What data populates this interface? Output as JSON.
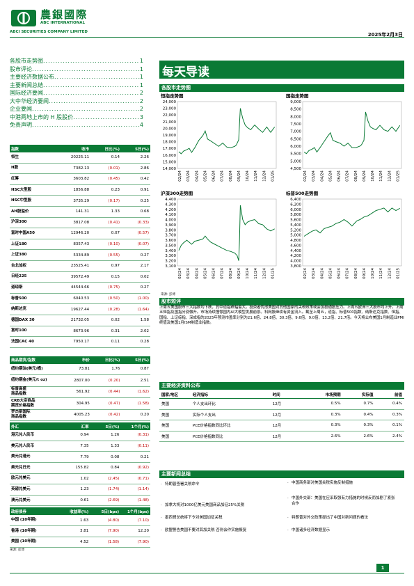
{
  "header": {
    "logo_cn": "農銀國際",
    "logo_en1": "ABC INTERNATIONAL",
    "logo_en2": "ABCI SECURITIES COMPANY LIMITED",
    "date": "2025年2月3日",
    "brand_color": "#0a7a35"
  },
  "toc": [
    {
      "title": "各股市走势图",
      "page": "1"
    },
    {
      "title": "股市评论",
      "page": "1"
    },
    {
      "title": "主要经济数据公布",
      "page": "1"
    },
    {
      "title": "主要新闻总结",
      "page": "1"
    },
    {
      "title": "国际经济要闻",
      "page": "2"
    },
    {
      "title": "大中华经济要闻",
      "page": "2"
    },
    {
      "title": "企业要闻",
      "page": "2"
    },
    {
      "title": "中港两地上市的 H 股股价",
      "page": "3"
    },
    {
      "title": "免责声明",
      "page": "4"
    }
  ],
  "title": "每天导读",
  "index_table": {
    "headers": [
      "指数",
      "收市",
      "日比(%)",
      "5日(%)"
    ],
    "rows": [
      [
        "恒生",
        "20225.11",
        "0.14",
        "2.26"
      ],
      [
        "H股",
        "7382.13",
        "(0.01)",
        "2.86"
      ],
      [
        "红筹",
        "3603.82",
        "(0.45)",
        "0.42"
      ],
      [
        "HSC大型股",
        "1856.88",
        "0.23",
        "0.91"
      ],
      [
        "HSC中型股",
        "3735.29",
        "(0.17)",
        "0.25"
      ],
      [
        "AH股溢价",
        "141.31",
        "1.33",
        "0.68"
      ],
      [
        "沪深300",
        "3817.08",
        "(0.41)",
        "(0.33)"
      ],
      [
        "富时中国A50",
        "12946.20",
        "0.07",
        "(0.57)"
      ],
      [
        "上证180",
        "8357.43",
        "(0.10)",
        "(0.07)"
      ],
      [
        "上证380",
        "5334.89",
        "(0.55)",
        "0.27"
      ],
      [
        "台北加权",
        "23525.41",
        "0.97",
        "2.17"
      ],
      [
        "日经225",
        "39572.49",
        "0.15",
        "0.02"
      ],
      [
        "道琼斯",
        "44544.66",
        "(0.75)",
        "0.27"
      ],
      [
        "标普500",
        "6040.53",
        "(0.50)",
        "(1.00)"
      ],
      [
        "纳斯达克",
        "19627.44",
        "(0.28)",
        "(1.64)"
      ],
      [
        "德国DAX 30",
        "21732.05",
        "0.02",
        "1.58"
      ],
      [
        "富时100",
        "8673.96",
        "0.31",
        "2.02"
      ],
      [
        "法国CAC 40",
        "7950.17",
        "0.11",
        "0.28"
      ]
    ]
  },
  "commodity_table": {
    "headers": [
      "商品期货/指数",
      "市价",
      "日比(%)",
      "5日(%)"
    ],
    "rows": [
      [
        "纽约期油(美元/桶)",
        "73.81",
        "1.76",
        "0.87"
      ],
      [
        "纽约期金(美元/t oz)",
        "2807.00",
        "(0.20)",
        "2.51"
      ],
      [
        "标普高盛\n商品指数",
        "561.92",
        "(0.44)",
        "(1.62)"
      ],
      [
        "CRB大宗商品\n期货价格指数",
        "304.95",
        "(0.47)",
        "(1.58)"
      ],
      [
        "罗杰斯国际\n商品指数",
        "4005.23",
        "(0.42)",
        "0.20"
      ]
    ]
  },
  "fx_table": {
    "headers": [
      "外汇",
      "汇率",
      "5日(%)",
      "1个月(%)"
    ],
    "rows": [
      [
        "港元兑人民币",
        "0.94",
        "1.26",
        "(0.31)"
      ],
      [
        "美元兑人民币",
        "7.35",
        "1.33",
        "(0.11)"
      ],
      [
        "美元兑港元",
        "7.79",
        "0.08",
        "0.21"
      ],
      [
        "美元兑日元",
        "155.82",
        "0.84",
        "(0.92)"
      ],
      [
        "欧元兑美元",
        "1.02",
        "(2.45)",
        "(0.71)"
      ],
      [
        "英磅兑美元",
        "1.23",
        "(1.74)",
        "(1.14)"
      ],
      [
        "澳元兑美元",
        "0.61",
        "(2.69)",
        "(1.48)"
      ]
    ]
  },
  "bond_table": {
    "headers": [
      "政府债券",
      "收益率(%)",
      "5日(bps)",
      "1个月(bps)"
    ],
    "rows": [
      [
        "中国 (10年期)",
        "1.63",
        "(4.80)",
        "(7.10)"
      ],
      [
        "香港 (10年期)",
        "3.81",
        "(7.90)",
        "12.20"
      ],
      [
        "美国 (10年期)",
        "4.52",
        "(1.58)",
        "(7.90)"
      ]
    ]
  },
  "table_source": "来源: 彭博",
  "chart_section": "各股市走势图",
  "chart_source": "来源: 彭博",
  "chart_data": [
    {
      "type": "line",
      "title": "恒指走势图",
      "ylim": [
        14000,
        24000
      ],
      "yticks": [
        "24,000",
        "23,000",
        "22,000",
        "21,000",
        "20,000",
        "19,000",
        "18,000",
        "17,000",
        "16,000",
        "15,000",
        "14,000"
      ],
      "xticks": [
        "02/24",
        "03/24",
        "04/24",
        "05/24",
        "06/24",
        "07/24",
        "08/24",
        "09/24",
        "10/24",
        "11/24",
        "12/24",
        "01/25"
      ],
      "x": [
        0,
        0.3,
        0.6,
        1,
        1.3,
        1.6,
        2,
        2.5,
        3,
        3.3,
        3.6,
        4,
        4.5,
        5,
        5.5,
        6,
        6.5,
        7,
        7.2,
        7.5,
        7.6,
        7.7,
        8,
        8.3,
        8.6,
        9,
        9.5,
        10,
        10.5,
        11,
        11.5,
        12
      ],
      "values": [
        16500,
        16200,
        16600,
        16800,
        17000,
        16400,
        17100,
        18200,
        18900,
        19600,
        18400,
        18100,
        17700,
        17300,
        17800,
        17200,
        17100,
        17300,
        17500,
        18300,
        20700,
        23000,
        21500,
        20500,
        20100,
        19800,
        20500,
        19900,
        19400,
        20200,
        19400,
        20200
      ]
    },
    {
      "type": "line",
      "title": "国指走势图",
      "ylim": [
        4500,
        9000
      ],
      "yticks": [
        "9,000",
        "8,500",
        "8,000",
        "7,500",
        "7,000",
        "6,500",
        "6,000",
        "5,500",
        "5,000",
        "4,500"
      ],
      "xticks": [
        "02/24",
        "03/24",
        "04/24",
        "05/24",
        "06/24",
        "07/24",
        "08/24",
        "09/24",
        "10/24",
        "11/24",
        "12/24",
        "01/25"
      ],
      "x": [
        0,
        0.3,
        0.6,
        1,
        1.3,
        1.6,
        2,
        2.5,
        3,
        3.3,
        3.6,
        4,
        4.5,
        5,
        5.5,
        6,
        6.5,
        7,
        7.2,
        7.5,
        7.6,
        7.7,
        8,
        8.3,
        8.6,
        9,
        9.5,
        10,
        10.5,
        11,
        11.5,
        12
      ],
      "values": [
        5600,
        5500,
        5700,
        5800,
        5900,
        5600,
        5900,
        6300,
        6700,
        6900,
        6400,
        6300,
        6200,
        6000,
        6200,
        5900,
        5900,
        6000,
        6100,
        6400,
        7300,
        8300,
        7700,
        7300,
        7200,
        7100,
        7400,
        7100,
        7000,
        7300,
        7000,
        7400
      ]
    },
    {
      "type": "line",
      "title": "沪深300走势图",
      "ylim": [
        3100,
        4400
      ],
      "yticks": [
        "4,400",
        "4,300",
        "4,200",
        "4,100",
        "4,000",
        "3,900",
        "3,800",
        "3,700",
        "3,600",
        "3,500",
        "3,400",
        "3,300",
        "3,200",
        "3,100"
      ],
      "xticks": [
        "02/24",
        "03/24",
        "04/24",
        "05/24",
        "06/24",
        "07/24",
        "08/24",
        "09/24",
        "10/24",
        "11/24",
        "12/24",
        "01/25"
      ],
      "x": [
        0,
        0.3,
        0.6,
        1,
        1.3,
        1.6,
        2,
        2.5,
        3,
        3.3,
        3.6,
        4,
        4.5,
        5,
        5.5,
        6,
        6.5,
        7,
        7.3,
        7.5,
        7.6,
        7.7,
        8,
        8.3,
        8.6,
        9,
        9.5,
        10,
        10.5,
        11,
        11.5,
        12
      ],
      "values": [
        3400,
        3500,
        3550,
        3600,
        3560,
        3520,
        3580,
        3600,
        3620,
        3680,
        3620,
        3560,
        3520,
        3480,
        3440,
        3400,
        3380,
        3350,
        3300,
        3200,
        3600,
        4280,
        4000,
        3900,
        3950,
        3980,
        4000,
        3920,
        3900,
        3820,
        3780,
        3820
      ]
    },
    {
      "type": "line",
      "title": "标普500走势图",
      "ylim": [
        3800,
        6400
      ],
      "yticks": [
        "6,400",
        "6,200",
        "6,000",
        "5,800",
        "5,600",
        "5,400",
        "5,200",
        "5,000",
        "4,800",
        "4,600",
        "4,400",
        "4,200",
        "4,000",
        "3,800"
      ],
      "xticks": [
        "02/24",
        "03/24",
        "04/24",
        "05/24",
        "06/24",
        "07/24",
        "08/24",
        "09/24",
        "10/24",
        "11/24",
        "12/24",
        "01/25"
      ],
      "x": [
        0,
        0.5,
        1,
        1.5,
        2,
        2.5,
        3,
        3.5,
        4,
        4.5,
        5,
        5.5,
        6,
        6.3,
        6.6,
        7,
        7.5,
        8,
        8.5,
        9,
        9.5,
        10,
        10.5,
        11,
        11.5,
        12
      ],
      "values": [
        4950,
        5050,
        5150,
        5200,
        5080,
        5250,
        5300,
        5350,
        5450,
        5500,
        5600,
        5500,
        5350,
        5450,
        5550,
        5600,
        5700,
        5750,
        5850,
        5950,
        6000,
        6050,
        5900,
        6050,
        5950,
        6040
      ]
    }
  ],
  "commentary": {
    "title": "股市短评",
    "text": "上周五美国股市三大指数均下跌，其中道指跌幅最大。投资者忧虑美国对其他国家的关税政策或会加剧通胀压力。上周五欧洲三大股市均上升。上周五恒指及国指分别微升。市场持续憧憬国内AI大模型发展前景。科网股继续有资金流入。截至上周五，道指、标普500指数、纳斯达克指数、恒指、国指、上证综指、深成指的2025年预测市盈率分别为21.6倍、24.8倍、30.3倍、9.6倍、9.0倍、13.2倍、21.7倍。今天将公布美国1月制造业PMI终值及美国1月ISM制造业指数。"
  },
  "eco_table": {
    "title": "主要经济资料公布",
    "headers": [
      "国家/地区",
      "经济指标",
      "时间",
      "市场预期",
      "实际值",
      "前值"
    ],
    "rows": [
      [
        "美国",
        "个人支出环比",
        "12月",
        "0.5%",
        "0.7%",
        "0.4%"
      ],
      [
        "美国",
        "实际个人支出",
        "12月",
        "0.3%",
        "0.4%",
        "0.3%"
      ],
      [
        "美国",
        "PCE价格指数同比环比",
        "12月",
        "0.3%",
        "0.3%",
        "0.1%"
      ],
      [
        "美国",
        "PCE价格指数同比",
        "12月",
        "2.6%",
        "2.6%",
        "2.4%"
      ]
    ]
  },
  "news": {
    "title": "主要新闻总结",
    "left": [
      "特朗普签署关税命令",
      "加拿大将对1000亿美元美国商品加征25%关税",
      "墨西哥总统将下令对美国加征关税",
      "欧盟警告美国不要对其加关税 否则会作实施报复"
    ],
    "right": [
      "中国商务部对美国关税实施反制措施",
      "中国外交部：美国在应采取强有力措施的时候反而加剧了紧张合作",
      "特朗普对外交政策提出了中国对新问题的看法",
      "中国诸多经济数据显示"
    ]
  },
  "footer": {
    "page": "1"
  }
}
